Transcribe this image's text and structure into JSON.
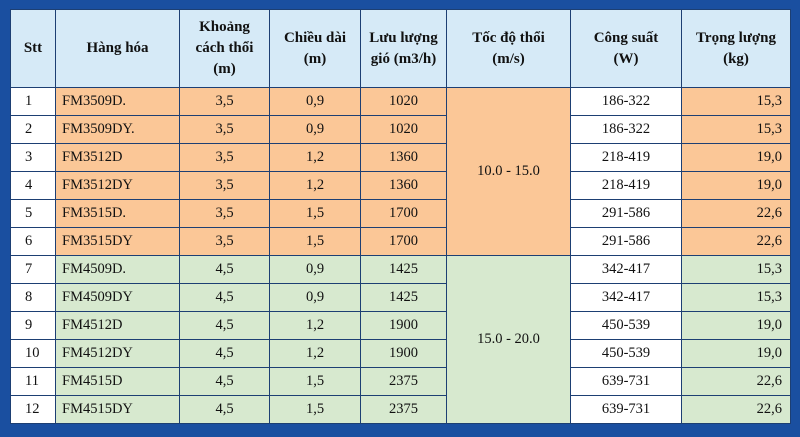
{
  "headers": {
    "stt": "Stt",
    "product": "Hàng hóa",
    "distance": [
      "Khoảng",
      "cách thổi",
      "(m)"
    ],
    "length": [
      "Chiều dài",
      "(m)"
    ],
    "airflow": [
      "Lưu lượng",
      "gió (m3/h)"
    ],
    "speed": [
      "Tốc độ thổi",
      "(m/s)"
    ],
    "power": [
      "Công suất",
      "(W)"
    ],
    "weight": [
      "Trọng lượng",
      "(kg)"
    ]
  },
  "speed_groups": [
    "10.0 - 15.0",
    "15.0 - 20.0"
  ],
  "rows": [
    {
      "stt": "1",
      "product": "FM3509D.",
      "distance": "3,5",
      "length": "0,9",
      "airflow": "1020",
      "power": "186-322",
      "weight": "15,3"
    },
    {
      "stt": "2",
      "product": "FM3509DY.",
      "distance": "3,5",
      "length": "0,9",
      "airflow": "1020",
      "power": "186-322",
      "weight": "15,3"
    },
    {
      "stt": "3",
      "product": "FM3512D",
      "distance": "3,5",
      "length": "1,2",
      "airflow": "1360",
      "power": "218-419",
      "weight": "19,0"
    },
    {
      "stt": "4",
      "product": "FM3512DY",
      "distance": "3,5",
      "length": "1,2",
      "airflow": "1360",
      "power": "218-419",
      "weight": "19,0"
    },
    {
      "stt": "5",
      "product": "FM3515D.",
      "distance": "3,5",
      "length": "1,5",
      "airflow": "1700",
      "power": "291-586",
      "weight": "22,6"
    },
    {
      "stt": "6",
      "product": "FM3515DY",
      "distance": "3,5",
      "length": "1,5",
      "airflow": "1700",
      "power": "291-586",
      "weight": "22,6"
    },
    {
      "stt": "7",
      "product": "FM4509D.",
      "distance": "4,5",
      "length": "0,9",
      "airflow": "1425",
      "power": "342-417",
      "weight": "15,3"
    },
    {
      "stt": "8",
      "product": "FM4509DY",
      "distance": "4,5",
      "length": "0,9",
      "airflow": "1425",
      "power": "342-417",
      "weight": "15,3"
    },
    {
      "stt": "9",
      "product": "FM4512D",
      "distance": "4,5",
      "length": "1,2",
      "airflow": "1900",
      "power": "450-539",
      "weight": "19,0"
    },
    {
      "stt": "10",
      "product": "FM4512DY",
      "distance": "4,5",
      "length": "1,2",
      "airflow": "1900",
      "power": "450-539",
      "weight": "19,0"
    },
    {
      "stt": "11",
      "product": "FM4515D",
      "distance": "4,5",
      "length": "1,5",
      "airflow": "2375",
      "power": "639-731",
      "weight": "22,6"
    },
    {
      "stt": "12",
      "product": "FM4515DY",
      "distance": "4,5",
      "length": "1,5",
      "airflow": "2375",
      "power": "639-731",
      "weight": "22,6"
    }
  ],
  "colors": {
    "frame": "#1a4fa0",
    "header_bg": "#d6eaf7",
    "group1_bg": "#fbc797",
    "group2_bg": "#d7e9cf"
  }
}
